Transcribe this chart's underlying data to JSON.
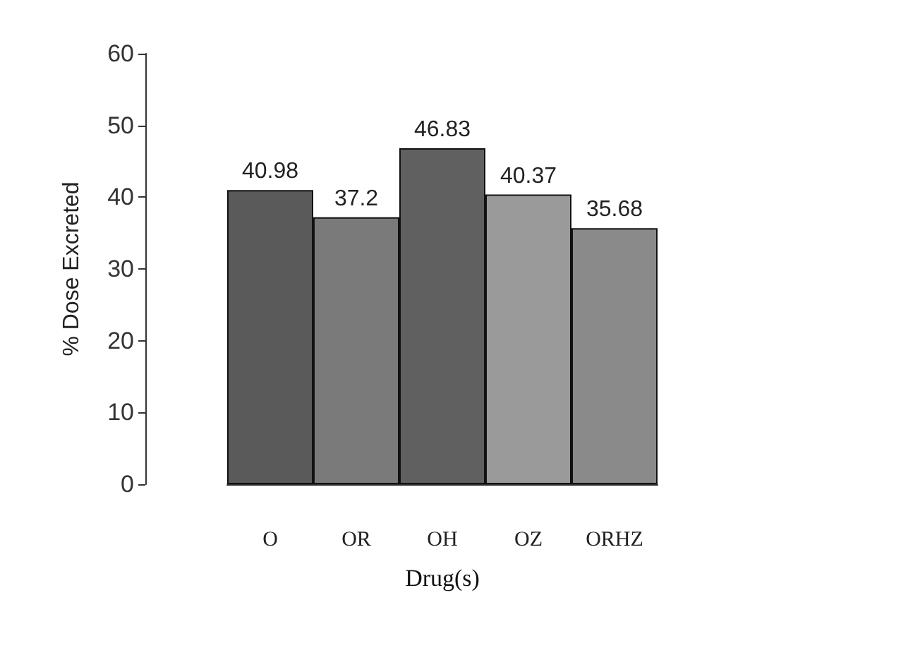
{
  "chart_data": {
    "type": "bar",
    "xlabel": "Drug(s)",
    "ylabel": "% Dose Excreted",
    "categories": [
      "O",
      "OR",
      "OH",
      "OZ",
      "ORHZ"
    ],
    "values": [
      40.98,
      37.2,
      46.83,
      40.37,
      35.68
    ],
    "colors": [
      "#5a5a5a",
      "#7a7a7a",
      "#606060",
      "#9a9a9a",
      "#8a8a8a"
    ],
    "ylim": [
      0,
      60
    ],
    "yticks": [
      0,
      10,
      20,
      30,
      40,
      50,
      60
    ],
    "data_labels": true,
    "grid": false
  }
}
